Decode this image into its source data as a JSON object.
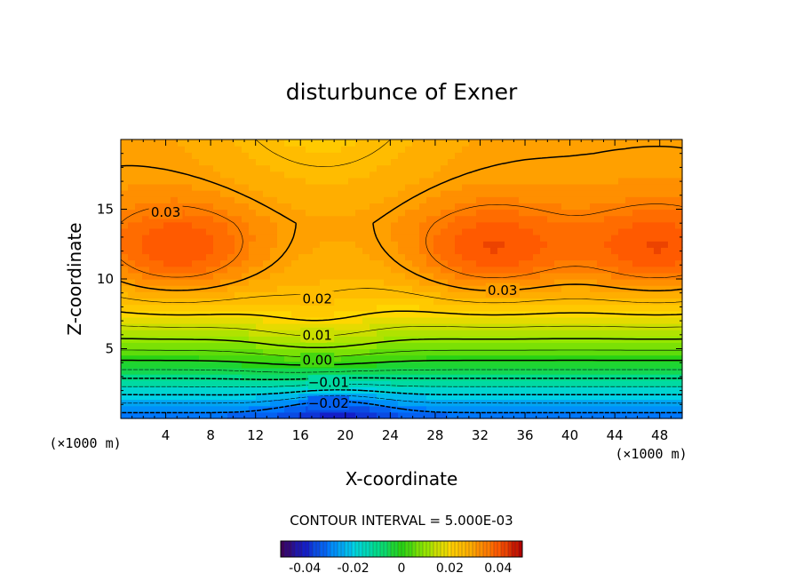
{
  "chart_data": {
    "type": "heatmap",
    "title": "disturbunce of Exner",
    "xlabel": "X-coordinate",
    "ylabel": "Z-coordinate",
    "x_unit": "(×1000 m)",
    "y_unit": "(×1000 m)",
    "xlim": [
      0,
      50
    ],
    "ylim": [
      0,
      20
    ],
    "x_ticks": [
      "4",
      "8",
      "12",
      "16",
      "20",
      "24",
      "28",
      "32",
      "36",
      "40",
      "44",
      "48"
    ],
    "y_ticks": [
      "5",
      "10",
      "15"
    ],
    "contour_interval_label": "CONTOUR INTERVAL = 5.000E-03",
    "colorbar": {
      "min": -0.05,
      "max": 0.05,
      "ticks": [
        "-0.04",
        "-0.02",
        "0",
        "0.02",
        "0.04"
      ]
    },
    "contour_labels": [
      {
        "text": "0.03",
        "x": 4,
        "z": 14.8
      },
      {
        "text": "0.03",
        "x": 34,
        "z": 9.2
      },
      {
        "text": "0.02",
        "x": 17.5,
        "z": 8.6
      },
      {
        "text": "0.01",
        "x": 17.5,
        "z": 6.0
      },
      {
        "text": "0.00",
        "x": 17.5,
        "z": 4.2
      },
      {
        "text": "−0.01",
        "x": 18.5,
        "z": 2.6
      },
      {
        "text": "−0.02",
        "x": 18.5,
        "z": 1.1
      }
    ],
    "field_features": {
      "maxima": [
        {
          "x": 5,
          "z": 12,
          "value": 0.035
        },
        {
          "x": 33,
          "z": 12,
          "value": 0.038
        },
        {
          "x": 48,
          "z": 12,
          "value": 0.038
        }
      ],
      "minimum": {
        "x": 19,
        "z": 0,
        "value": -0.03
      },
      "saddle": {
        "x": 17.5,
        "z": 13.5,
        "value": 0.026
      }
    }
  }
}
